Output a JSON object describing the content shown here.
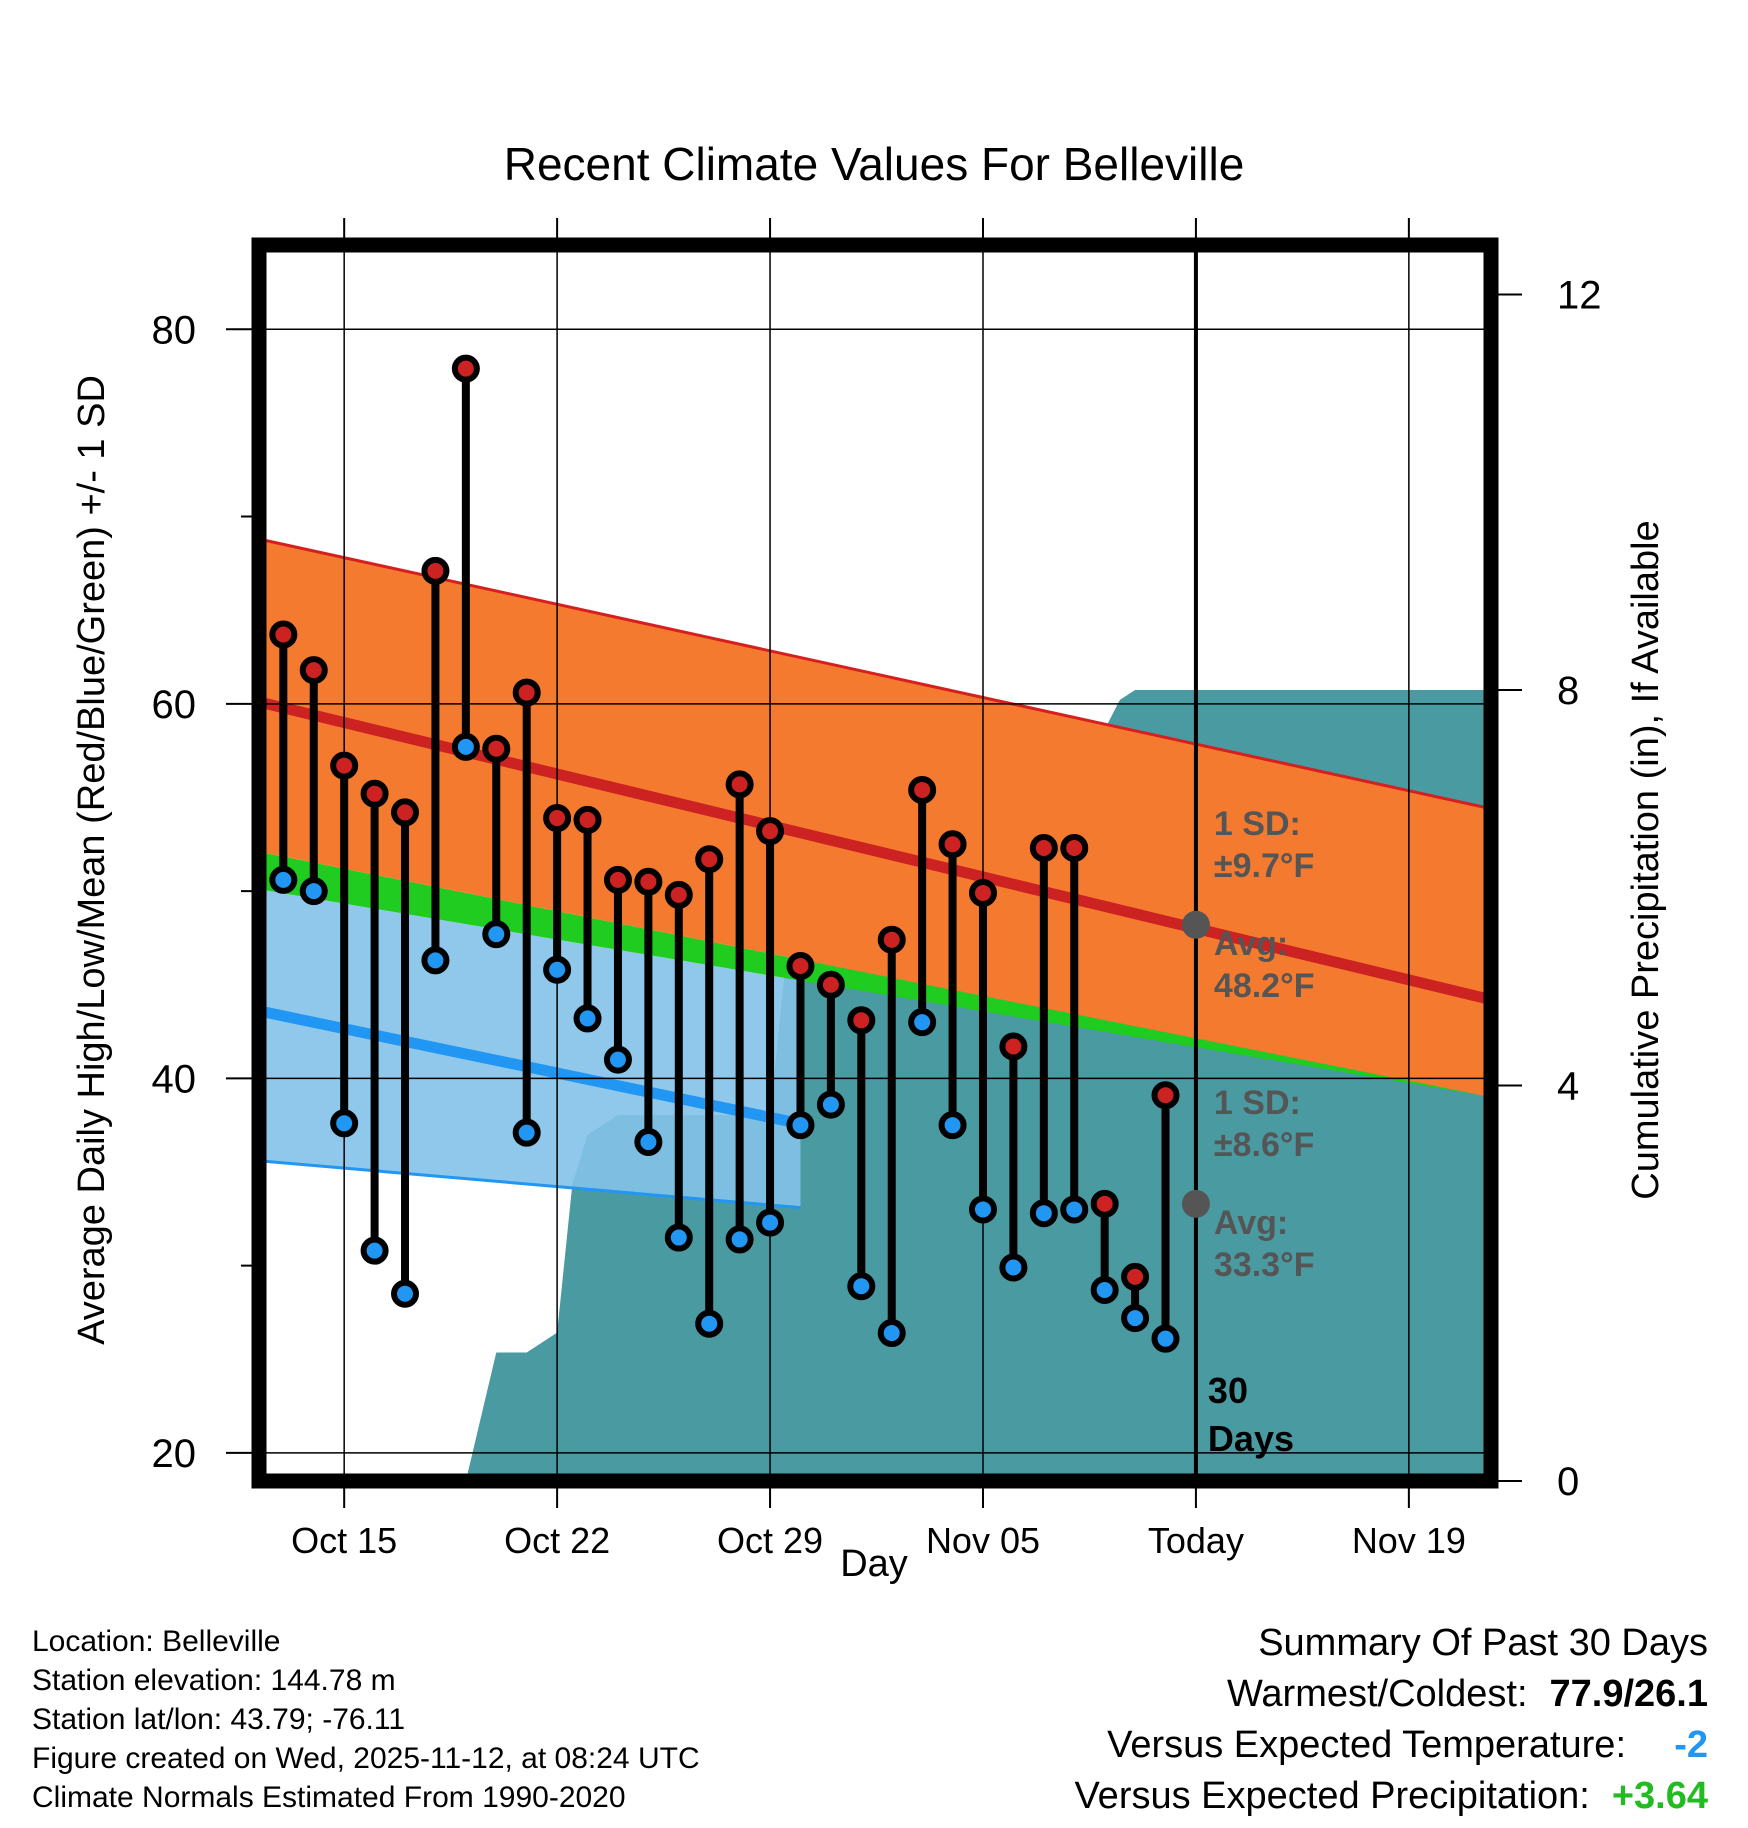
{
  "chart_data": {
    "type": "line",
    "title": "Recent Climate Values For Belleville",
    "xlabel": "Day",
    "ylabel": "Average Daily High/Low/Mean (Red/Blue/Green) +/- 1 SD",
    "y2label": "Cumulative Precipitation (in), If Available",
    "ylim": [
      18.5,
      84.5
    ],
    "y2lim": [
      0,
      12.5
    ],
    "yticks": [
      20,
      40,
      60,
      80
    ],
    "y2ticks": [
      0,
      4,
      8,
      12
    ],
    "xlim": [
      0,
      40.5
    ],
    "xticks": [
      {
        "day": 2.8,
        "label": "Oct 15"
      },
      {
        "day": 9.8,
        "label": "Oct 22"
      },
      {
        "day": 16.8,
        "label": "Oct 29"
      },
      {
        "day": 23.8,
        "label": "Nov 05"
      },
      {
        "day": 30.8,
        "label": "Today"
      },
      {
        "day": 37.8,
        "label": "Nov 19"
      }
    ],
    "today_day": 30.8,
    "normals": {
      "high_avg": [
        60.1,
        44.2
      ],
      "high_upper": [
        68.8,
        54.4
      ],
      "low_avg": [
        43.6,
        29.9
      ],
      "low_lower": [
        35.6,
        29.9
      ],
      "mean_upper": [
        52.1,
        39.0
      ],
      "mean_lower": [
        50.1,
        39.0
      ],
      "low_band_end_day": 17.8
    },
    "series": [
      {
        "name": "High",
        "color": "#cc2222",
        "values": [
          63.7,
          61.8,
          56.7,
          55.2,
          54.2,
          67.1,
          77.9,
          57.6,
          60.6,
          53.9,
          53.8,
          50.6,
          50.5,
          49.8,
          51.7,
          55.7,
          53.2,
          46.0,
          45.0,
          43.1,
          47.4,
          55.4,
          52.5,
          49.9,
          41.7,
          52.3,
          52.3,
          33.3,
          29.4,
          39.1
        ]
      },
      {
        "name": "Low",
        "color": "#2196f3",
        "values": [
          50.6,
          50.0,
          37.6,
          30.8,
          28.5,
          46.3,
          57.7,
          47.7,
          37.1,
          45.8,
          43.2,
          41.0,
          36.6,
          31.5,
          26.9,
          31.4,
          32.3,
          37.5,
          38.6,
          28.9,
          26.4,
          43.0,
          37.5,
          33.0,
          29.9,
          32.8,
          33.0,
          28.7,
          27.2,
          26.1
        ]
      }
    ],
    "precipitation": {
      "name": "Cumulative Precipitation",
      "color": "#4a9aa2",
      "x": [
        6.8,
        7.8,
        8.8,
        9.8,
        10.3,
        10.8,
        11.8,
        16.8,
        17.3,
        17.8,
        18.8,
        20.8,
        21.8,
        22.8,
        23.8,
        24.8,
        25.8,
        26.8,
        27.8,
        28.3,
        28.8,
        30.8,
        40.5
      ],
      "y": [
        0,
        1.3,
        1.3,
        1.5,
        3.0,
        3.5,
        3.7,
        3.7,
        5.2,
        5.7,
        6.3,
        6.3,
        6.7,
        6.8,
        7.0,
        7.3,
        7.5,
        7.5,
        7.6,
        7.9,
        8.0,
        8.0,
        8.0
      ]
    },
    "annotations": {
      "high_sd": "1 SD:",
      "high_sd_value": "±9.7°F",
      "high_avg_label": "Avg:",
      "high_avg_value": "48.2°F",
      "high_avg_point": 48.2,
      "low_sd": "1 SD:",
      "low_sd_value": "±8.6°F",
      "low_avg_label": "Avg:",
      "low_avg_value": "33.3°F",
      "low_avg_point": 33.3,
      "days_number": "30",
      "days_word": "Days"
    }
  },
  "info": {
    "location": "Location: Belleville",
    "elevation": "Station elevation: 144.78 m",
    "latlon": "Station lat/lon: 43.79; -76.11",
    "created": "Figure created on Wed, 2025-11-12, at 08:24 UTC",
    "normals": "Climate Normals Estimated From 1990-2020"
  },
  "summary": {
    "title": "Summary Of Past 30 Days",
    "warmest_label": "Warmest/Coldest:",
    "warmest_value": "77.9/26.1",
    "temp_label": "Versus Expected Temperature:",
    "temp_value": "-2",
    "temp_color": "#2196f3",
    "precip_label": "Versus Expected Precipitation:",
    "precip_value": "+3.64",
    "precip_color": "#22bb22"
  }
}
